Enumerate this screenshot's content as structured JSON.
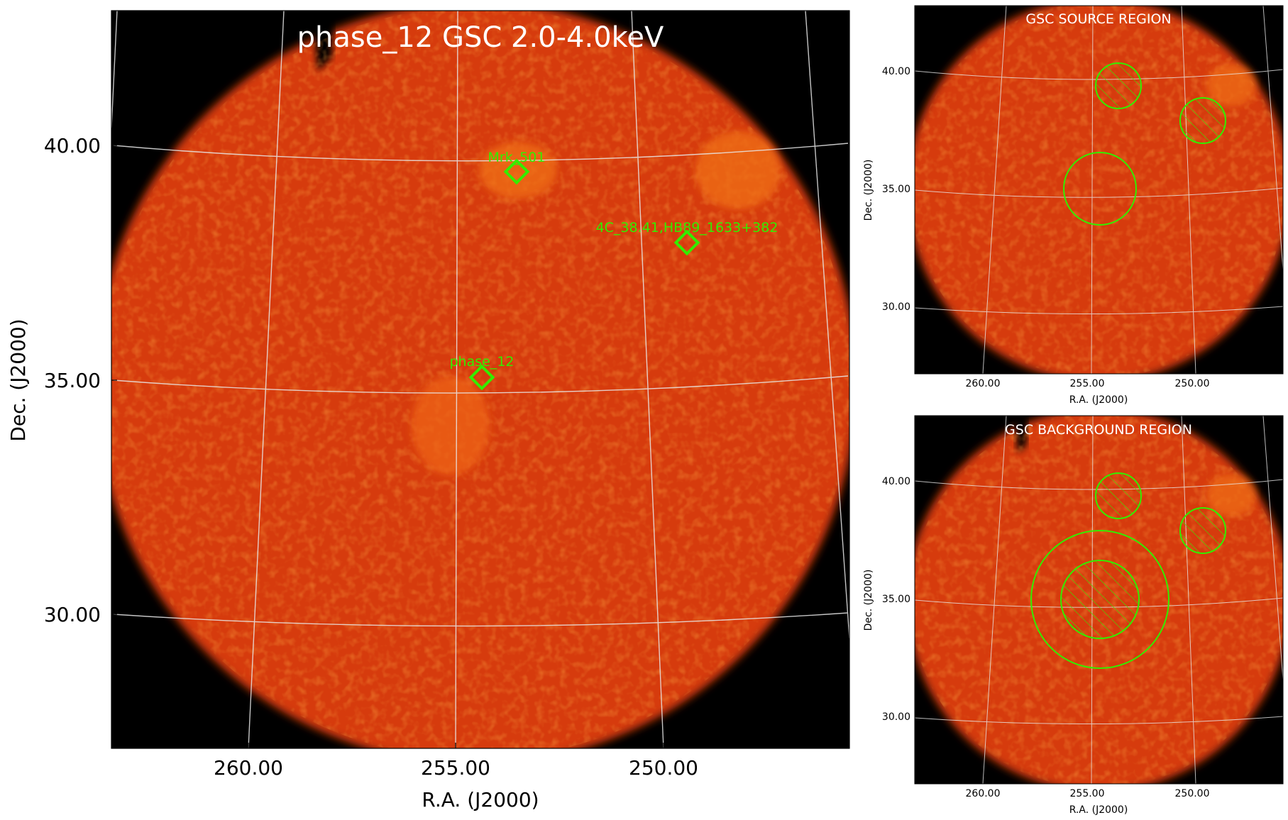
{
  "main_panel": {
    "title": "phase_12 GSC 2.0-4.0keV",
    "x_axis_label": "R.A. (J2000)",
    "y_axis_label": "Dec. (J2000)",
    "x_ticks": [
      "260.00",
      "255.00",
      "250.00"
    ],
    "y_ticks": [
      "40.00",
      "35.00",
      "30.00"
    ],
    "sources": [
      {
        "name": "Mrk_501",
        "label": "Mrk_501"
      },
      {
        "name": "4C_38.41",
        "label": "4C_38.41,HB89_1633+382"
      },
      {
        "name": "phase_12",
        "label": "phase_12"
      }
    ]
  },
  "source_panel": {
    "title": "GSC SOURCE REGION",
    "x_axis_label": "R.A. (J2000)",
    "y_axis_label": "Dec. (J2000)",
    "x_ticks": [
      "260.00",
      "255.00",
      "250.00"
    ],
    "y_ticks": [
      "40.00",
      "35.00",
      "30.00"
    ]
  },
  "background_panel": {
    "title": "GSC BACKGROUND REGION",
    "x_axis_label": "R.A. (J2000)",
    "y_axis_label": "Dec. (J2000)",
    "x_ticks": [
      "260.00",
      "255.00",
      "250.00"
    ],
    "y_ticks": [
      "40.00",
      "35.00",
      "30.00"
    ]
  },
  "colors": {
    "sky_base": "#d63a10",
    "background": "#000000",
    "region": "#33ee00",
    "grid": "#e8e8e8"
  }
}
